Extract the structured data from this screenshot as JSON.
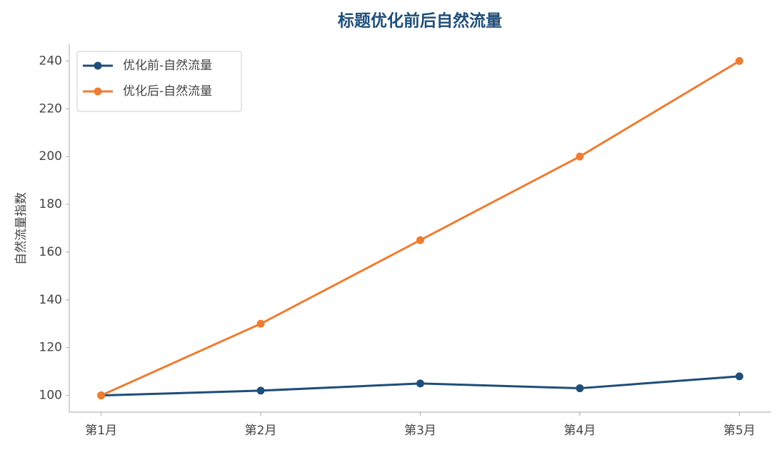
{
  "chart_data": {
    "type": "line",
    "title": "标题优化前后自然流量",
    "y_label": "自然流量指数",
    "categories": [
      "第1月",
      "第2月",
      "第3月",
      "第4月",
      "第5月"
    ],
    "series": [
      {
        "name": "优化前-自然流量",
        "color": "#1f4e79",
        "values": [
          100,
          102,
          105,
          103,
          108
        ]
      },
      {
        "name": "优化后-自然流量",
        "color": "#ed7d31",
        "values": [
          100,
          130,
          165,
          200,
          240
        ]
      }
    ],
    "ylim": [
      93,
      247
    ],
    "yticks": [
      100,
      120,
      140,
      160,
      180,
      200,
      220,
      240
    ],
    "legend": "upper left",
    "grid": false
  }
}
